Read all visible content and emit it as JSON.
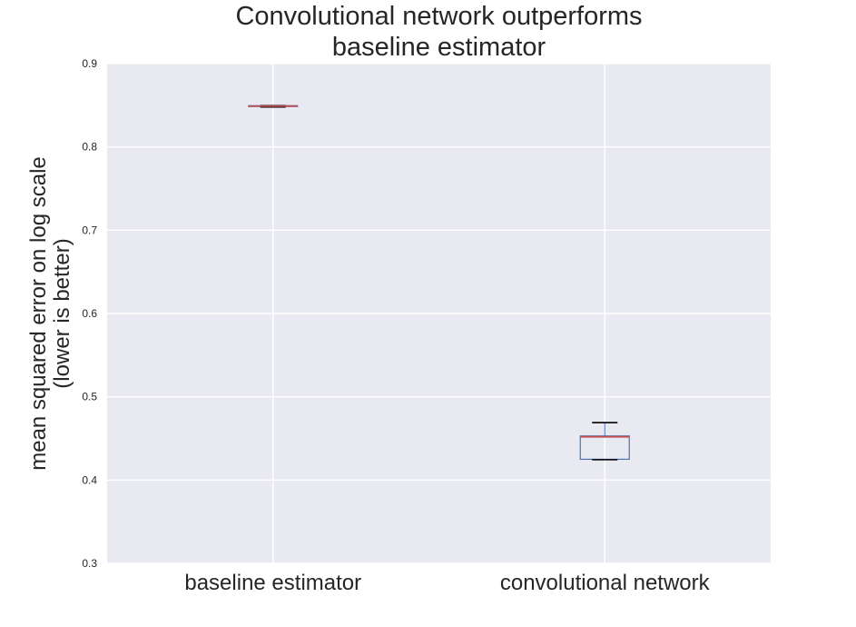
{
  "chart_data": {
    "type": "box",
    "title_lines": [
      "Convolutional network outperforms",
      "baseline estimator"
    ],
    "xlabel": "",
    "ylabel_lines": [
      "mean squared error on log scale",
      "(lower is better)"
    ],
    "categories": [
      "baseline estimator",
      "convolutional network"
    ],
    "ylim": [
      0.3,
      0.9
    ],
    "yticks": [
      0.3,
      0.4,
      0.5,
      0.6,
      0.7,
      0.8,
      0.9
    ],
    "ytick_labels": [
      "0.3",
      "0.4",
      "0.5",
      "0.6",
      "0.7",
      "0.8",
      "0.9"
    ],
    "grid": true,
    "boxes": [
      {
        "category": "baseline estimator",
        "whisker_low": 0.848,
        "q1": 0.8485,
        "median": 0.849,
        "q3": 0.8495,
        "whisker_high": 0.8495
      },
      {
        "category": "convolutional network",
        "whisker_low": 0.4245,
        "q1": 0.425,
        "median": 0.452,
        "q3": 0.453,
        "whisker_high": 0.469
      }
    ],
    "colors": {
      "background": "#e9e9f1",
      "grid": "#ffffff",
      "box": "#4c72b0",
      "median": "#c44e52",
      "whisker_cap": "#000000",
      "text": "#262626"
    }
  }
}
